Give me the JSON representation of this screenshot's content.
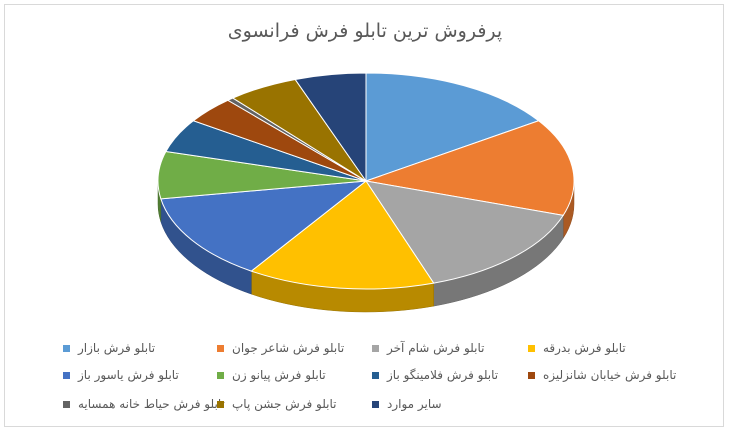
{
  "chart_data": {
    "type": "pie",
    "title": "پرفروش ترین تابلو فرش فرانسوی",
    "legend_position": "bottom",
    "slices": [
      {
        "name": "تابلو فرش بازار",
        "value": 15.5,
        "color": "#5b9bd5"
      },
      {
        "name": "تابلو فرش شاعر جوان",
        "value": 14.5,
        "color": "#ed7d31"
      },
      {
        "name": "تابلو فرش شام آخر",
        "value": 14.5,
        "color": "#a5a5a5"
      },
      {
        "name": "تابلو فرش بدرقه",
        "value": 14.5,
        "color": "#ffc000"
      },
      {
        "name": "تابلو فرش یاسور باز",
        "value": 13,
        "color": "#4472c4"
      },
      {
        "name": "تابلو فرش پیانو زن",
        "value": 7,
        "color": "#70ad47"
      },
      {
        "name": "تابلو فرش فلامینگو باز",
        "value": 5,
        "color": "#255e91"
      },
      {
        "name": "تابلو فرش خیابان شانزلیزه",
        "value": 4,
        "color": "#9e480e"
      },
      {
        "name": "تابلو فرش حیاط خانه همسایه",
        "value": 0.5,
        "color": "#636363"
      },
      {
        "name": "تابلو فرش جشن پاپ",
        "value": 5.5,
        "color": "#997300"
      },
      {
        "name": "سایر موارد",
        "value": 5.5,
        "color": "#264478"
      }
    ]
  }
}
